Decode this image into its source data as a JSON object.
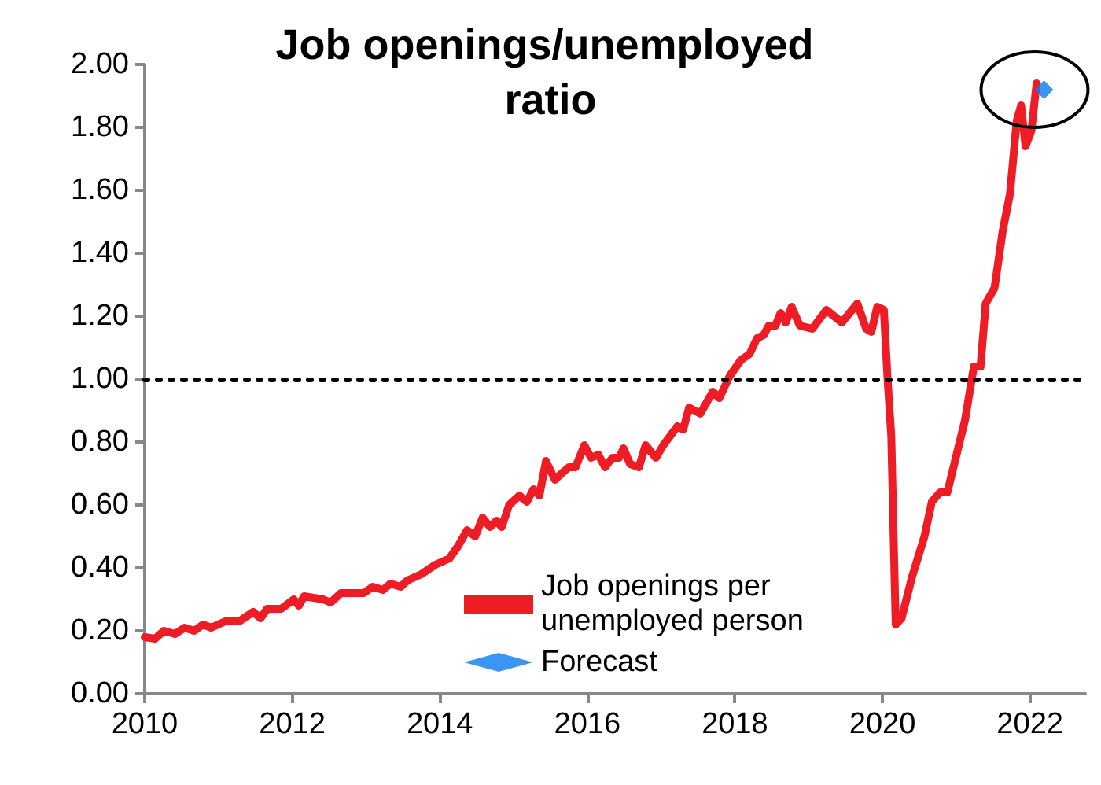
{
  "chart_data": {
    "type": "line",
    "title": "Job openings/unemployed ratio",
    "xlim": [
      2010,
      2022.75
    ],
    "xticks": [
      2010,
      2012,
      2014,
      2016,
      2018,
      2020,
      2022
    ],
    "ylim": [
      0,
      2
    ],
    "yticks": [
      {
        "value": 0,
        "label": "0.00"
      },
      {
        "value": 0.2,
        "label": "0.20"
      },
      {
        "value": 0.4,
        "label": "0.40"
      },
      {
        "value": 0.6,
        "label": "0.60"
      },
      {
        "value": 0.8,
        "label": "0.80"
      },
      {
        "value": 1,
        "label": "1.00"
      },
      {
        "value": 1.2,
        "label": "1.20"
      },
      {
        "value": 1.4,
        "label": "1.40"
      },
      {
        "value": 1.6,
        "label": "1.60"
      },
      {
        "value": 1.8,
        "label": "1.80"
      },
      {
        "value": 2,
        "label": "2.00"
      }
    ],
    "grid": false,
    "legend": "bottom",
    "line_style": "solid",
    "ref_lines": [
      {
        "axis": "y",
        "value": 1,
        "color": "#000000",
        "line_style": "dotted"
      }
    ],
    "series": [
      {
        "name": "Job openings per unemployed person",
        "color": "#ee1c25",
        "marker": "none",
        "x": [
          2010.0,
          2010.14,
          2010.26,
          2010.41,
          2010.54,
          2010.67,
          2010.79,
          2010.9,
          2011.09,
          2011.28,
          2011.47,
          2011.57,
          2011.66,
          2011.85,
          2012.02,
          2012.09,
          2012.16,
          2012.42,
          2012.52,
          2012.66,
          2012.8,
          2012.97,
          2013.09,
          2013.23,
          2013.33,
          2013.47,
          2013.56,
          2013.75,
          2013.94,
          2014.13,
          2014.25,
          2014.37,
          2014.48,
          2014.58,
          2014.68,
          2014.77,
          2014.84,
          2014.94,
          2015.08,
          2015.18,
          2015.27,
          2015.35,
          2015.44,
          2015.56,
          2015.65,
          2015.75,
          2015.84,
          2015.96,
          2016.05,
          2016.15,
          2016.24,
          2016.34,
          2016.43,
          2016.49,
          2016.58,
          2016.7,
          2016.79,
          2016.93,
          2017.03,
          2017.22,
          2017.3,
          2017.38,
          2017.53,
          2017.7,
          2017.79,
          2017.93,
          2018.08,
          2018.2,
          2018.3,
          2018.39,
          2018.46,
          2018.55,
          2018.62,
          2018.69,
          2018.77,
          2018.88,
          2019.05,
          2019.24,
          2019.45,
          2019.66,
          2019.78,
          2019.85,
          2019.93,
          2020.02,
          2020.07,
          2020.12,
          2020.18,
          2020.26,
          2020.4,
          2020.57,
          2020.67,
          2020.78,
          2020.88,
          2021.12,
          2021.24,
          2021.33,
          2021.4,
          2021.52,
          2021.63,
          2021.73,
          2021.82,
          2021.88,
          2021.94,
          2022.02,
          2022.09
        ],
        "values": [
          0.18,
          0.175,
          0.2,
          0.19,
          0.21,
          0.2,
          0.22,
          0.21,
          0.23,
          0.23,
          0.26,
          0.24,
          0.27,
          0.27,
          0.3,
          0.28,
          0.31,
          0.3,
          0.29,
          0.32,
          0.32,
          0.32,
          0.34,
          0.33,
          0.35,
          0.34,
          0.36,
          0.38,
          0.41,
          0.43,
          0.47,
          0.52,
          0.5,
          0.56,
          0.53,
          0.55,
          0.53,
          0.6,
          0.63,
          0.61,
          0.65,
          0.63,
          0.74,
          0.68,
          0.7,
          0.72,
          0.72,
          0.79,
          0.75,
          0.76,
          0.72,
          0.75,
          0.75,
          0.78,
          0.73,
          0.72,
          0.79,
          0.75,
          0.79,
          0.85,
          0.84,
          0.91,
          0.89,
          0.96,
          0.94,
          1.01,
          1.06,
          1.08,
          1.13,
          1.14,
          1.17,
          1.17,
          1.21,
          1.18,
          1.23,
          1.17,
          1.16,
          1.22,
          1.18,
          1.24,
          1.16,
          1.15,
          1.23,
          1.22,
          1.0,
          0.82,
          0.22,
          0.24,
          0.37,
          0.5,
          0.61,
          0.64,
          0.64,
          0.87,
          1.04,
          1.04,
          1.24,
          1.29,
          1.47,
          1.59,
          1.82,
          1.87,
          1.74,
          1.79,
          1.94
        ]
      },
      {
        "name": "Forecast",
        "type": "scatter",
        "color": "#0a7cf0",
        "marker": "diamond",
        "x": [
          2022.19
        ],
        "values": [
          1.92
        ]
      }
    ]
  }
}
